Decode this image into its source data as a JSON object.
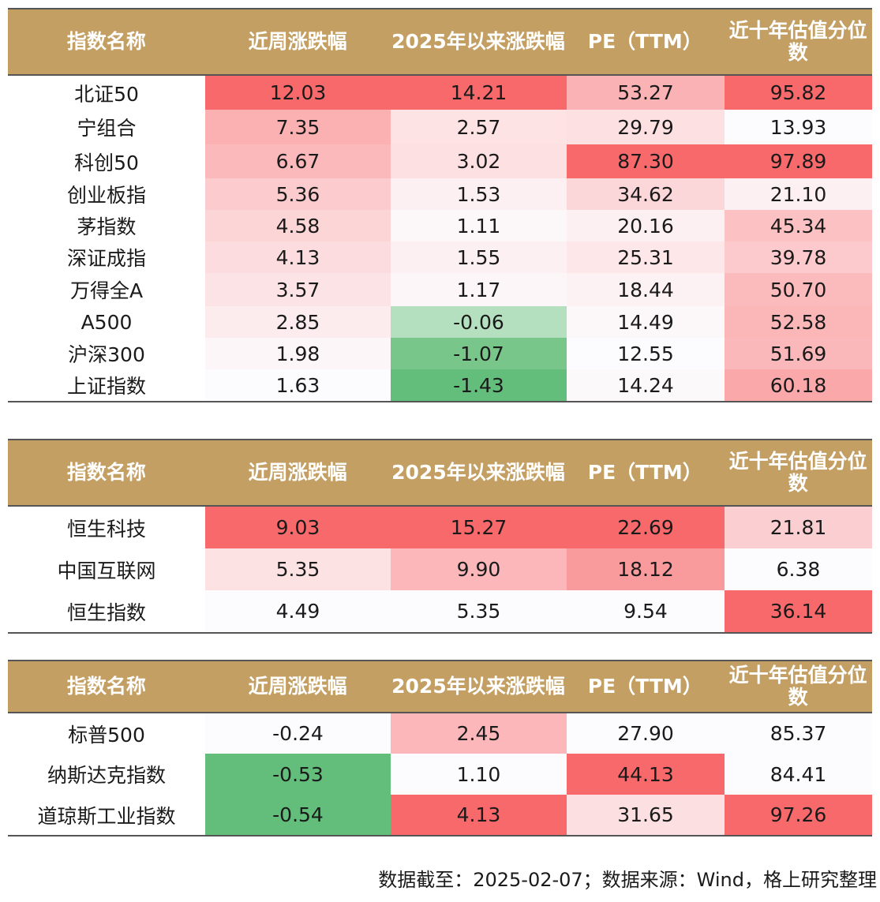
{
  "headers": [
    "指数名称",
    "近周涨跌幅",
    "2025年以来涨跌幅",
    "PE（TTM）",
    "近十年估值分位数"
  ],
  "tables": [
    {
      "rows": [
        {
          "name": "北证50",
          "cells": [
            {
              "v": "12.03",
              "bg": "#f8696b"
            },
            {
              "v": "14.21",
              "bg": "#f8696b"
            },
            {
              "v": "53.27",
              "bg": "#fbb2b4"
            },
            {
              "v": "95.82",
              "bg": "#f8696b"
            }
          ]
        },
        {
          "name": "宁组合",
          "cells": [
            {
              "v": "7.35",
              "bg": "#fbb0b2"
            },
            {
              "v": "2.57",
              "bg": "#fde3e4"
            },
            {
              "v": "29.79",
              "bg": "#fde1e2"
            },
            {
              "v": "13.93",
              "bg": "#fcfcff"
            }
          ]
        },
        {
          "name": "科创50",
          "cells": [
            {
              "v": "6.67",
              "bg": "#fbb9bb"
            },
            {
              "v": "3.02",
              "bg": "#fde0e1"
            },
            {
              "v": "87.30",
              "bg": "#f8696b"
            },
            {
              "v": "97.89",
              "bg": "#f8696b"
            }
          ]
        },
        {
          "name": "创业板指",
          "cells": [
            {
              "v": "5.36",
              "bg": "#fccbcd"
            },
            {
              "v": "1.53",
              "bg": "#fcf0f2"
            },
            {
              "v": "34.62",
              "bg": "#fcd7d9"
            },
            {
              "v": "21.10",
              "bg": "#fcf0f2"
            }
          ]
        },
        {
          "name": "茅指数",
          "cells": [
            {
              "v": "4.58",
              "bg": "#fcd5d7"
            },
            {
              "v": "1.11",
              "bg": "#fcf7f9"
            },
            {
              "v": "20.16",
              "bg": "#fdf0f2"
            },
            {
              "v": "45.34",
              "bg": "#fbc1c3"
            }
          ]
        },
        {
          "name": "深证成指",
          "cells": [
            {
              "v": "4.13",
              "bg": "#fcdcde"
            },
            {
              "v": "1.55",
              "bg": "#fcf0f2"
            },
            {
              "v": "25.31",
              "bg": "#fde7e9"
            },
            {
              "v": "39.78",
              "bg": "#fccacc"
            }
          ]
        },
        {
          "name": "万得全A",
          "cells": [
            {
              "v": "3.57",
              "bg": "#fce3e5"
            },
            {
              "v": "1.17",
              "bg": "#fcf6f8"
            },
            {
              "v": "18.44",
              "bg": "#fcf2f4"
            },
            {
              "v": "50.70",
              "bg": "#fbbabc"
            }
          ]
        },
        {
          "name": "A500",
          "cells": [
            {
              "v": "2.85",
              "bg": "#fcecee"
            },
            {
              "v": "-0.06",
              "bg": "#b5e0c0"
            },
            {
              "v": "14.49",
              "bg": "#fcf8fa"
            },
            {
              "v": "52.58",
              "bg": "#fbb6b8"
            }
          ]
        },
        {
          "name": "沪深300",
          "cells": [
            {
              "v": "1.98",
              "bg": "#fcf6f8"
            },
            {
              "v": "-1.07",
              "bg": "#79c68a"
            },
            {
              "v": "12.55",
              "bg": "#fcfcff"
            },
            {
              "v": "51.69",
              "bg": "#fbb8ba"
            }
          ]
        },
        {
          "name": "上证指数",
          "cells": [
            {
              "v": "1.63",
              "bg": "#fcfcff"
            },
            {
              "v": "-1.43",
              "bg": "#63be7b"
            },
            {
              "v": "14.24",
              "bg": "#fcf9fb"
            },
            {
              "v": "60.18",
              "bg": "#faa8aa"
            }
          ]
        }
      ]
    },
    {
      "rows": [
        {
          "name": "恒生科技",
          "cells": [
            {
              "v": "9.03",
              "bg": "#f8696b"
            },
            {
              "v": "15.27",
              "bg": "#f8696b"
            },
            {
              "v": "22.69",
              "bg": "#f8696b"
            },
            {
              "v": "21.81",
              "bg": "#fbcfd1"
            }
          ]
        },
        {
          "name": "中国互联网",
          "cells": [
            {
              "v": "5.35",
              "bg": "#fde2e4"
            },
            {
              "v": "9.90",
              "bg": "#fbb7b9"
            },
            {
              "v": "18.12",
              "bg": "#f99a9c"
            },
            {
              "v": "6.38",
              "bg": "#fcfcff"
            }
          ]
        },
        {
          "name": "恒生指数",
          "cells": [
            {
              "v": "4.49",
              "bg": "#fcfcff"
            },
            {
              "v": "5.35",
              "bg": "#fcfcff"
            },
            {
              "v": "9.54",
              "bg": "#fcfcff"
            },
            {
              "v": "36.14",
              "bg": "#f8696b"
            }
          ]
        }
      ]
    },
    {
      "rows": [
        {
          "name": "标普500",
          "cells": [
            {
              "v": "-0.24",
              "bg": "#fcfcff"
            },
            {
              "v": "2.45",
              "bg": "#fbb7b9"
            },
            {
              "v": "27.90",
              "bg": "#fcfcff"
            },
            {
              "v": "85.37",
              "bg": "#fcfcff"
            }
          ]
        },
        {
          "name": "纳斯达克指数",
          "cells": [
            {
              "v": "-0.53",
              "bg": "#63be7b"
            },
            {
              "v": "1.10",
              "bg": "#fcfcff"
            },
            {
              "v": "44.13",
              "bg": "#f8696b"
            },
            {
              "v": "84.41",
              "bg": "#fcfcff"
            }
          ]
        },
        {
          "name": "道琼斯工业指数",
          "cells": [
            {
              "v": "-0.54",
              "bg": "#63be7b"
            },
            {
              "v": "4.13",
              "bg": "#f8696b"
            },
            {
              "v": "31.65",
              "bg": "#fcdfe1"
            },
            {
              "v": "97.26",
              "bg": "#f8696b"
            }
          ]
        }
      ]
    }
  ],
  "note": "数据截至：2025-02-07；数据来源：Wind，格上研究整理",
  "chart_data": {
    "type": "table",
    "columns": [
      "指数名称",
      "近周涨跌幅",
      "2025年以来涨跌幅",
      "PE（TTM）",
      "近十年估值分位数"
    ],
    "tables": [
      [
        [
          "北证50",
          12.03,
          14.21,
          53.27,
          95.82
        ],
        [
          "宁组合",
          7.35,
          2.57,
          29.79,
          13.93
        ],
        [
          "科创50",
          6.67,
          3.02,
          87.3,
          97.89
        ],
        [
          "创业板指",
          5.36,
          1.53,
          34.62,
          21.1
        ],
        [
          "茅指数",
          4.58,
          1.11,
          20.16,
          45.34
        ],
        [
          "深证成指",
          4.13,
          1.55,
          25.31,
          39.78
        ],
        [
          "万得全A",
          3.57,
          1.17,
          18.44,
          50.7
        ],
        [
          "A500",
          2.85,
          -0.06,
          14.49,
          52.58
        ],
        [
          "沪深300",
          1.98,
          -1.07,
          12.55,
          51.69
        ],
        [
          "上证指数",
          1.63,
          -1.43,
          14.24,
          60.18
        ]
      ],
      [
        [
          "恒生科技",
          9.03,
          15.27,
          22.69,
          21.81
        ],
        [
          "中国互联网",
          5.35,
          9.9,
          18.12,
          6.38
        ],
        [
          "恒生指数",
          4.49,
          5.35,
          9.54,
          36.14
        ]
      ],
      [
        [
          "标普500",
          -0.24,
          2.45,
          27.9,
          85.37
        ],
        [
          "纳斯达克指数",
          -0.53,
          1.1,
          44.13,
          84.41
        ],
        [
          "道琼斯工业指数",
          -0.54,
          4.13,
          31.65,
          97.26
        ]
      ]
    ]
  }
}
